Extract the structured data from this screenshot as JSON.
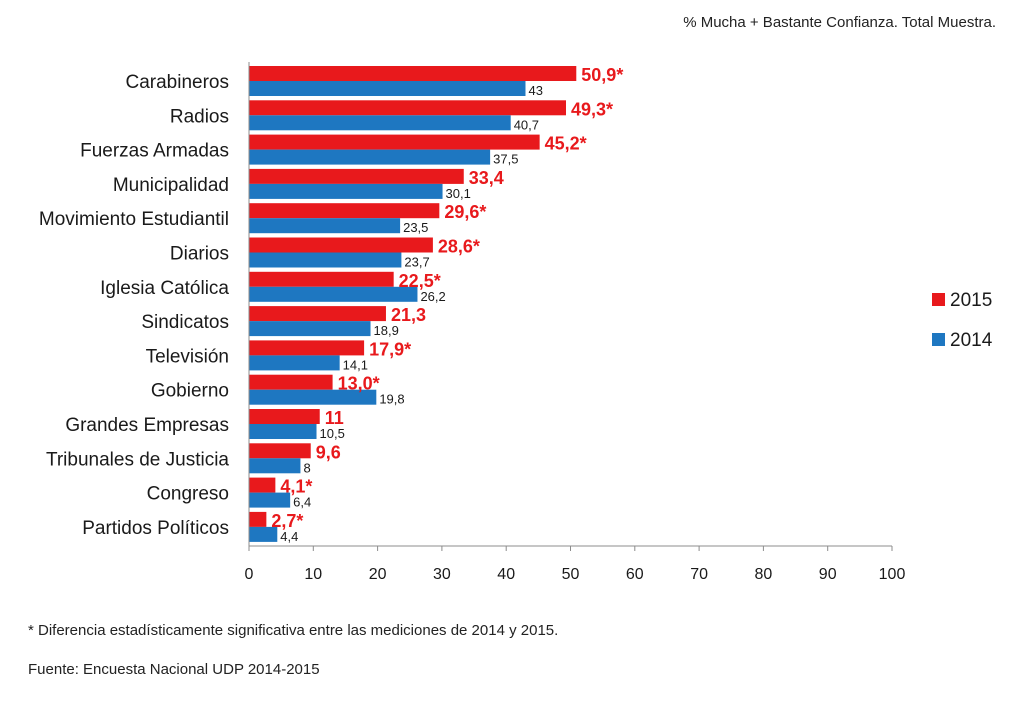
{
  "chart_data": {
    "type": "bar",
    "orientation": "horizontal",
    "subtitle": "% Mucha + Bastante Confianza. Total Muestra.",
    "categories": [
      "Carabineros",
      "Radios",
      "Fuerzas Armadas",
      "Municipalidad",
      "Movimiento Estudiantil",
      "Diarios",
      "Iglesia Católica",
      "Sindicatos",
      "Televisión",
      "Gobierno",
      "Grandes Empresas",
      "Tribunales de Justicia",
      "Congreso",
      "Partidos Políticos"
    ],
    "series": [
      {
        "name": "2015",
        "color": "#e8191c",
        "values": [
          50.9,
          49.3,
          45.2,
          33.4,
          29.6,
          28.6,
          22.5,
          21.3,
          17.9,
          13.0,
          11,
          9.6,
          4.1,
          2.7
        ],
        "labels": [
          "50,9*",
          "49,3*",
          "45,2*",
          "33,4",
          "29,6*",
          "28,6*",
          "22,5*",
          "21,3",
          "17,9*",
          "13,0*",
          "11",
          "9,6",
          "4,1*",
          "2,7*"
        ]
      },
      {
        "name": "2014",
        "color": "#1e77c1",
        "values": [
          43,
          40.7,
          37.5,
          30.1,
          23.5,
          23.7,
          26.2,
          18.9,
          14.1,
          19.8,
          10.5,
          8,
          6.4,
          4.4
        ],
        "labels": [
          "43",
          "40,7",
          "37,5",
          "30,1",
          "23,5",
          "23,7",
          "26,2",
          "18,9",
          "14,1",
          "19,8",
          "10,5",
          "8",
          "6,4",
          "4,4"
        ]
      }
    ],
    "xlim": [
      0,
      100
    ],
    "xticks": [
      0,
      10,
      20,
      30,
      40,
      50,
      60,
      70,
      80,
      90,
      100
    ],
    "legend_position": "right",
    "grid": false,
    "footnote": "* Diferencia estadísticamente significativa entre las mediciones de 2014 y 2015.",
    "source": "Fuente: Encuesta Nacional UDP 2014-2015"
  }
}
